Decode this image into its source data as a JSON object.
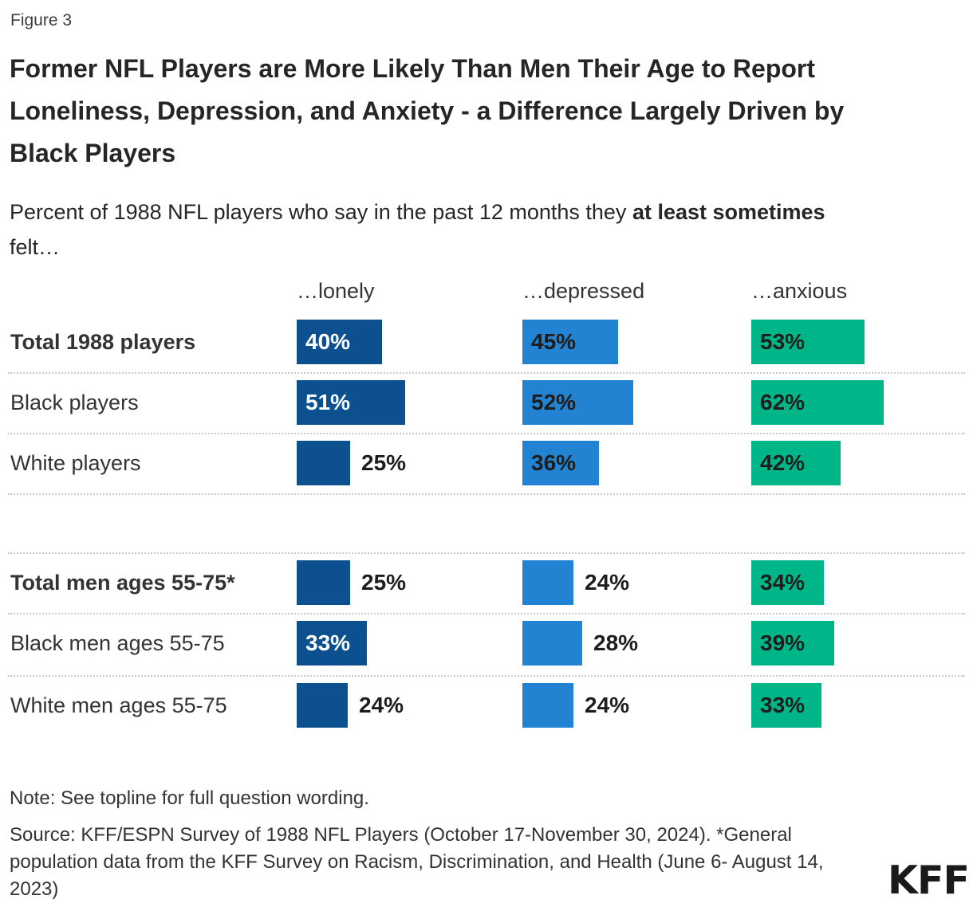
{
  "figure_label": "Figure 3",
  "title": "Former NFL Players are More Likely Than Men Their Age to Report Loneliness, Depression, and Anxiety - a Difference Largely Driven by Black Players",
  "subtitle": {
    "prefix": "Percent of 1988 NFL players who say in the past 12 months they ",
    "bold": "at least sometimes",
    "suffix": " felt…"
  },
  "columns": [
    {
      "key": "lonely",
      "label": "…lonely",
      "color": "#0D508F"
    },
    {
      "key": "depressed",
      "label": "…depressed",
      "color": "#2283D2"
    },
    {
      "key": "anxious",
      "label": "…anxious",
      "color": "#00B688"
    }
  ],
  "value_suffix": "%",
  "label_colors": {
    "white": "#ffffff",
    "black": "#1d1d1d"
  },
  "groups": [
    {
      "rows": [
        {
          "label": "Total 1988 players",
          "bold": true,
          "cells": [
            {
              "value": 40,
              "position": "inside",
              "text_color": "white"
            },
            {
              "value": 45,
              "position": "inside",
              "text_color": "black"
            },
            {
              "value": 53,
              "position": "inside",
              "text_color": "black"
            }
          ]
        },
        {
          "label": "Black players",
          "bold": false,
          "cells": [
            {
              "value": 51,
              "position": "inside",
              "text_color": "white"
            },
            {
              "value": 52,
              "position": "inside",
              "text_color": "black"
            },
            {
              "value": 62,
              "position": "inside",
              "text_color": "black"
            }
          ]
        },
        {
          "label": "White players",
          "bold": false,
          "cells": [
            {
              "value": 25,
              "position": "outside",
              "text_color": "black"
            },
            {
              "value": 36,
              "position": "inside",
              "text_color": "black"
            },
            {
              "value": 42,
              "position": "inside",
              "text_color": "black"
            }
          ]
        }
      ]
    },
    {
      "rows": [
        {
          "label": "Total men ages 55-75*",
          "bold": true,
          "cells": [
            {
              "value": 25,
              "position": "outside",
              "text_color": "black"
            },
            {
              "value": 24,
              "position": "outside",
              "text_color": "black"
            },
            {
              "value": 34,
              "position": "inside",
              "text_color": "black"
            }
          ]
        },
        {
          "label": "Black men ages 55-75",
          "bold": false,
          "cells": [
            {
              "value": 33,
              "position": "inside",
              "text_color": "white"
            },
            {
              "value": 28,
              "position": "outside",
              "text_color": "black"
            },
            {
              "value": 39,
              "position": "inside",
              "text_color": "black"
            }
          ]
        },
        {
          "label": "White men ages 55-75",
          "bold": false,
          "cells": [
            {
              "value": 24,
              "position": "outside",
              "text_color": "black"
            },
            {
              "value": 24,
              "position": "outside",
              "text_color": "black"
            },
            {
              "value": 33,
              "position": "inside",
              "text_color": "black"
            }
          ]
        }
      ]
    }
  ],
  "note": "Note: See topline for full question wording.",
  "source": "Source: KFF/ESPN Survey of 1988 NFL Players (October 17-November 30, 2024). *General population data from the KFF Survey on Racism, Discrimination, and Health (June 6- August 14, 2023)",
  "logo": "KFF",
  "chart_data": {
    "type": "bar",
    "orientation": "horizontal",
    "title": "Former NFL Players are More Likely Than Men Their Age to Report Loneliness, Depression, and Anxiety - a Difference Largely Driven by Black Players",
    "subtitle": "Percent of 1988 NFL players who say in the past 12 months they at least sometimes felt…",
    "categories": [
      "Total 1988 players",
      "Black players",
      "White players",
      "Total men ages 55-75*",
      "Black men ages 55-75",
      "White men ages 55-75"
    ],
    "series": [
      {
        "name": "…lonely",
        "color": "#0D508F",
        "values": [
          40,
          51,
          25,
          25,
          33,
          24
        ]
      },
      {
        "name": "…depressed",
        "color": "#2283D2",
        "values": [
          45,
          52,
          36,
          24,
          28,
          24
        ]
      },
      {
        "name": "…anxious",
        "color": "#00B688",
        "values": [
          53,
          62,
          42,
          34,
          39,
          33
        ]
      }
    ],
    "value_suffix": "%",
    "xlim": [
      0,
      100
    ],
    "grid": false,
    "legend_position": "column-headers",
    "note": "Note: See topline for full question wording.",
    "source": "Source: KFF/ESPN Survey of 1988 NFL Players (October 17-November 30, 2024). *General population data from the KFF Survey on Racism, Discrimination, and Health (June 6- August 14, 2023)"
  }
}
